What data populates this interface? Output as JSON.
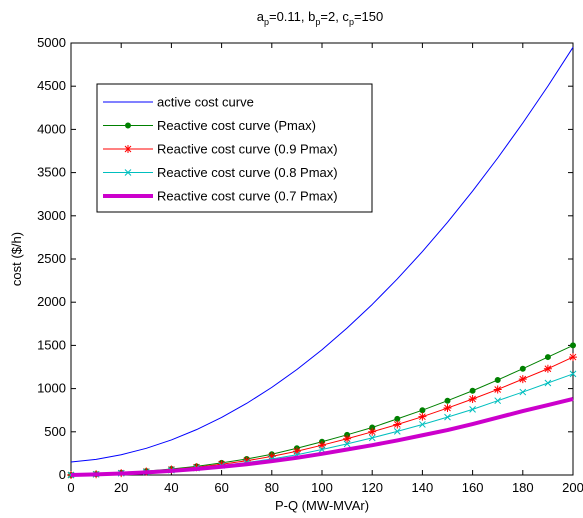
{
  "chart_data": {
    "type": "line",
    "title": "a",
    "title_parts": [
      "a",
      "p",
      "=0.11, b",
      "p",
      "=2, c",
      "p",
      "=150"
    ],
    "xlabel": "P-Q  (MW-MVAr)",
    "ylabel": "cost ($/h)",
    "xlim": [
      0,
      200
    ],
    "ylim": [
      0,
      5000
    ],
    "xticks": [
      0,
      20,
      40,
      60,
      80,
      100,
      120,
      140,
      160,
      180,
      200
    ],
    "yticks": [
      0,
      500,
      1000,
      1500,
      2000,
      2500,
      3000,
      3500,
      4000,
      4500,
      5000
    ],
    "grid": false,
    "legend_position": "top-left",
    "x": [
      0,
      10,
      20,
      30,
      40,
      50,
      60,
      70,
      80,
      90,
      100,
      110,
      120,
      130,
      140,
      150,
      160,
      170,
      180,
      190,
      200
    ],
    "series": [
      {
        "name": "active cost curve",
        "color": "#0000ff",
        "width": 1,
        "marker": "none",
        "values": [
          150,
          181,
          234,
          309,
          406,
          525,
          666,
          829,
          1014,
          1221,
          1450,
          1701,
          1974,
          2269,
          2586,
          2925,
          3286,
          3669,
          4074,
          4501,
          4950
        ]
      },
      {
        "name": "Reactive cost curve (Pmax)",
        "color": "#008000",
        "width": 1,
        "marker": "dot",
        "values": [
          0,
          10,
          25,
          45,
          70,
          100,
          140,
          185,
          240,
          310,
          385,
          465,
          550,
          650,
          750,
          860,
          975,
          1100,
          1230,
          1365,
          1500
        ]
      },
      {
        "name": "Reactive cost curve (0.9 Pmax)",
        "color": "#ff0000",
        "width": 1,
        "marker": "star",
        "values": [
          0,
          9,
          22,
          40,
          63,
          90,
          125,
          165,
          215,
          275,
          345,
          420,
          500,
          585,
          675,
          775,
          880,
          990,
          1110,
          1230,
          1365
        ]
      },
      {
        "name": "Reactive cost curve (0.8 Pmax)",
        "color": "#00bfbf",
        "width": 1,
        "marker": "x",
        "values": [
          0,
          8,
          20,
          35,
          55,
          80,
          110,
          145,
          185,
          235,
          295,
          360,
          430,
          505,
          585,
          670,
          760,
          860,
          960,
          1065,
          1170
        ]
      },
      {
        "name": "Reactive cost curve (0.7 Pmax)",
        "color": "#cc00cc",
        "width": 4,
        "marker": "none",
        "values": [
          0,
          7,
          17,
          30,
          47,
          70,
          95,
          125,
          160,
          200,
          245,
          295,
          345,
          400,
          460,
          520,
          590,
          665,
          740,
          810,
          880
        ]
      }
    ]
  }
}
